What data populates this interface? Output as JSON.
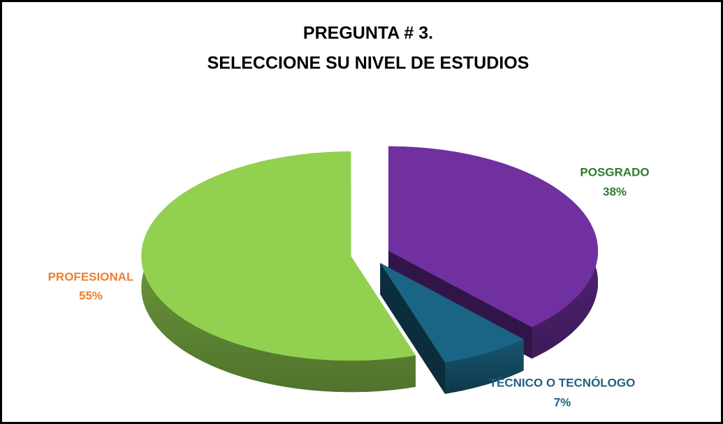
{
  "chart_data": {
    "type": "pie3d",
    "title": [
      "PREGUNTA # 3.",
      "SELECCIONE SU NIVEL DE ESTUDIOS"
    ],
    "categories": [
      "POSGRADO",
      "TÉCNICO O TECNÓLOGO",
      "PROFESIONAL"
    ],
    "values": [
      38,
      7,
      55
    ],
    "value_labels": [
      "38%",
      "7%",
      "55%"
    ],
    "colors": [
      "#7030a0",
      "#1a6585",
      "#92d050"
    ],
    "label_colors": [
      "#2e7a2e",
      "#1f5f80",
      "#ed7d31"
    ]
  }
}
